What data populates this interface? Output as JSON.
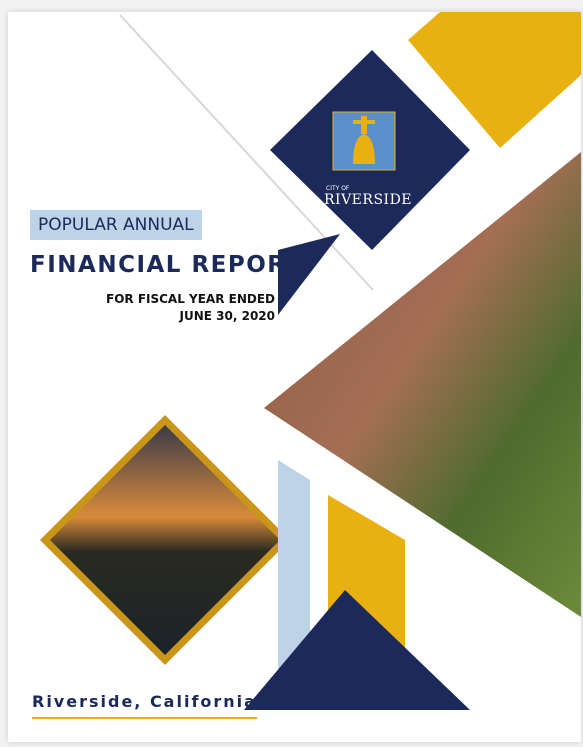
{
  "logo": {
    "small": "CITY OF",
    "name": "RIVERSIDE"
  },
  "header": {
    "subtitle": "POPULAR ANNUAL",
    "title": "FINANCIAL REPORT",
    "fiscal_line1": "FOR FISCAL YEAR ENDED",
    "fiscal_line2": "JUNE 30, 2020"
  },
  "footer": {
    "place": "Riverside, California"
  }
}
